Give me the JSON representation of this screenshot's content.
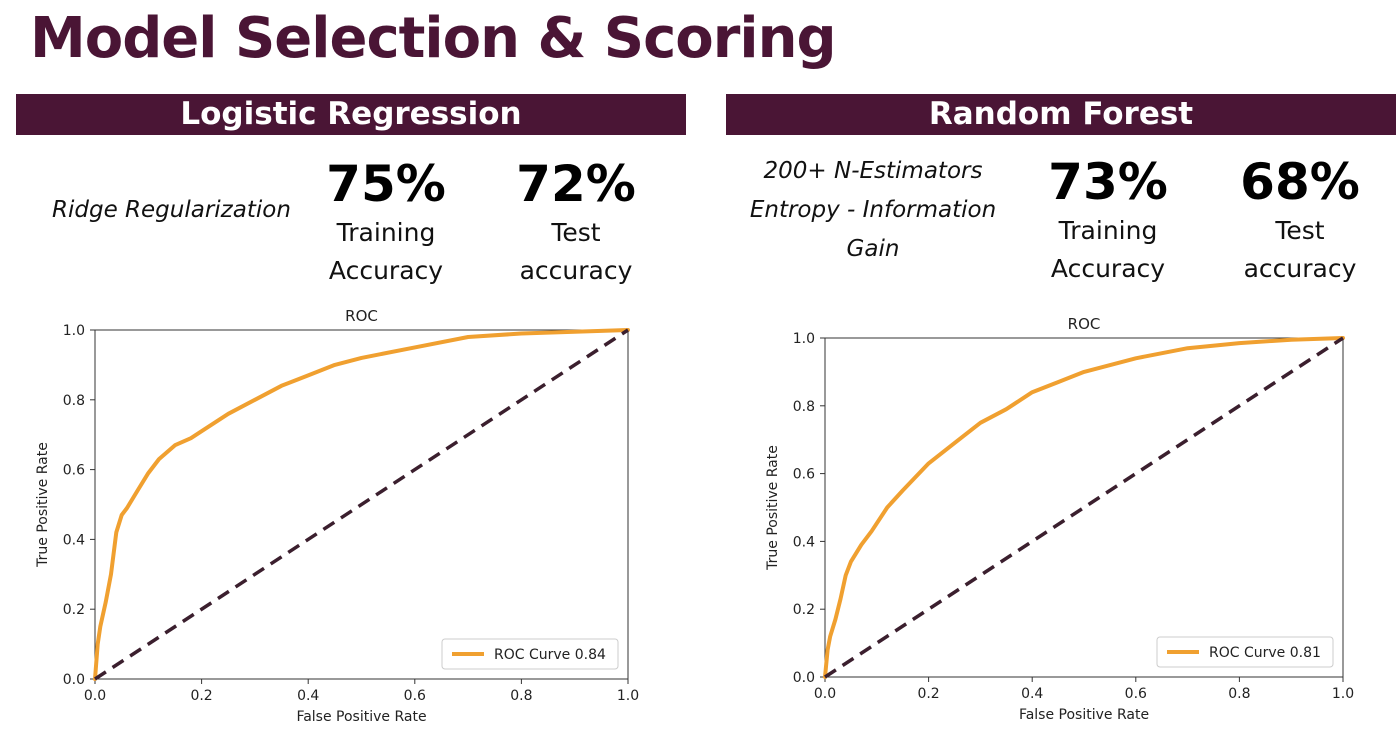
{
  "slide": {
    "title": "Model Selection & Scoring"
  },
  "panels": [
    {
      "header": "Logistic Regression",
      "notes": [
        "Ridge Regularization"
      ],
      "metrics": [
        {
          "value": "75%",
          "label": [
            "Training",
            "Accuracy"
          ]
        },
        {
          "value": "72%",
          "label": [
            "Test",
            "accuracy"
          ]
        }
      ]
    },
    {
      "header": "Random Forest",
      "notes": [
        "200+ N-Estimators",
        "Entropy - Information",
        "Gain"
      ],
      "metrics": [
        {
          "value": "73%",
          "label": [
            "Training",
            "Accuracy"
          ]
        },
        {
          "value": "68%",
          "label": [
            "Test",
            "accuracy"
          ]
        }
      ]
    }
  ],
  "colors": {
    "brand": "#4a1535",
    "roc_curve": "#f0a030",
    "diagonal": "#3b1f2e"
  },
  "chart_data": [
    {
      "type": "line",
      "title": "ROC",
      "xlabel": "False Positive Rate",
      "ylabel": "True Positive Rate",
      "xlim": [
        0,
        1
      ],
      "ylim": [
        0,
        1
      ],
      "xticks": [
        "0.0",
        "0.2",
        "0.4",
        "0.6",
        "0.8",
        "1.0"
      ],
      "yticks": [
        "0.0",
        "0.2",
        "0.4",
        "0.6",
        "0.8",
        "1.0"
      ],
      "grid": false,
      "legend": "lower-right",
      "series": [
        {
          "name": "ROC Curve 0.84",
          "x": [
            0,
            0.005,
            0.01,
            0.02,
            0.03,
            0.04,
            0.05,
            0.06,
            0.08,
            0.1,
            0.12,
            0.15,
            0.18,
            0.2,
            0.25,
            0.3,
            0.35,
            0.4,
            0.45,
            0.5,
            0.6,
            0.7,
            0.8,
            0.9,
            1.0
          ],
          "y": [
            0,
            0.1,
            0.15,
            0.22,
            0.3,
            0.42,
            0.47,
            0.49,
            0.54,
            0.59,
            0.63,
            0.67,
            0.69,
            0.71,
            0.76,
            0.8,
            0.84,
            0.87,
            0.9,
            0.92,
            0.95,
            0.98,
            0.99,
            0.995,
            1.0
          ]
        },
        {
          "name": "",
          "style": "dashed",
          "x": [
            0,
            1
          ],
          "y": [
            0,
            1
          ]
        }
      ]
    },
    {
      "type": "line",
      "title": "ROC",
      "xlabel": "False Positive Rate",
      "ylabel": "True Positive Rate",
      "xlim": [
        0,
        1
      ],
      "ylim": [
        0,
        1
      ],
      "xticks": [
        "0.0",
        "0.2",
        "0.4",
        "0.6",
        "0.8",
        "1.0"
      ],
      "yticks": [
        "0.0",
        "0.2",
        "0.4",
        "0.6",
        "0.8",
        "1.0"
      ],
      "grid": false,
      "legend": "lower-right",
      "series": [
        {
          "name": "ROC Curve 0.81",
          "x": [
            0,
            0.005,
            0.01,
            0.02,
            0.03,
            0.04,
            0.05,
            0.07,
            0.09,
            0.12,
            0.15,
            0.2,
            0.25,
            0.3,
            0.35,
            0.4,
            0.45,
            0.5,
            0.6,
            0.7,
            0.8,
            0.9,
            1.0
          ],
          "y": [
            0,
            0.08,
            0.12,
            0.17,
            0.23,
            0.3,
            0.34,
            0.39,
            0.43,
            0.5,
            0.55,
            0.63,
            0.69,
            0.75,
            0.79,
            0.84,
            0.87,
            0.9,
            0.94,
            0.97,
            0.985,
            0.995,
            1.0
          ]
        },
        {
          "name": "",
          "style": "dashed",
          "x": [
            0,
            1
          ],
          "y": [
            0,
            1
          ]
        }
      ]
    }
  ]
}
